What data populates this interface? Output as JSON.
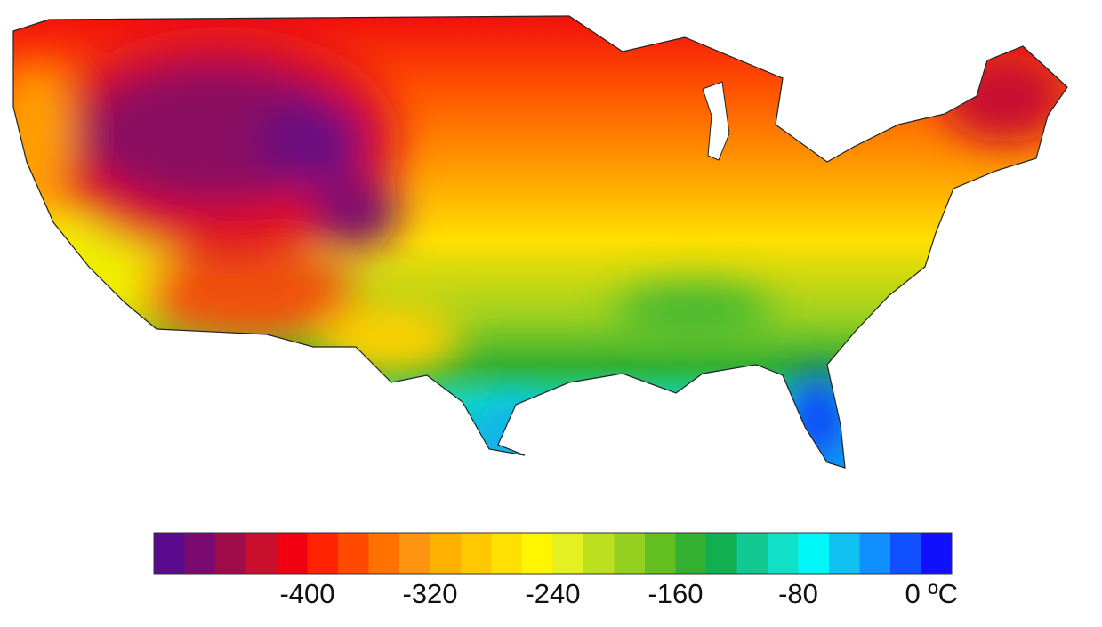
{
  "colorbar": {
    "clim": [
      -500,
      20
    ],
    "colors": [
      "#5a0a8c",
      "#7a0a70",
      "#a00c4a",
      "#c8102e",
      "#f00010",
      "#ff2200",
      "#ff4a00",
      "#ff7200",
      "#ff9410",
      "#ffb000",
      "#ffc800",
      "#ffe000",
      "#fff500",
      "#e4f020",
      "#bce020",
      "#94d020",
      "#64c020",
      "#34b030",
      "#10b050",
      "#10c890",
      "#10e0c8",
      "#00f8f8",
      "#10c0f0",
      "#1090ff",
      "#1050ff",
      "#1010ff"
    ],
    "ticks": [
      -400,
      -320,
      -240,
      -160,
      -80,
      {
        "value": 0,
        "label": "0 ºC"
      }
    ]
  }
}
